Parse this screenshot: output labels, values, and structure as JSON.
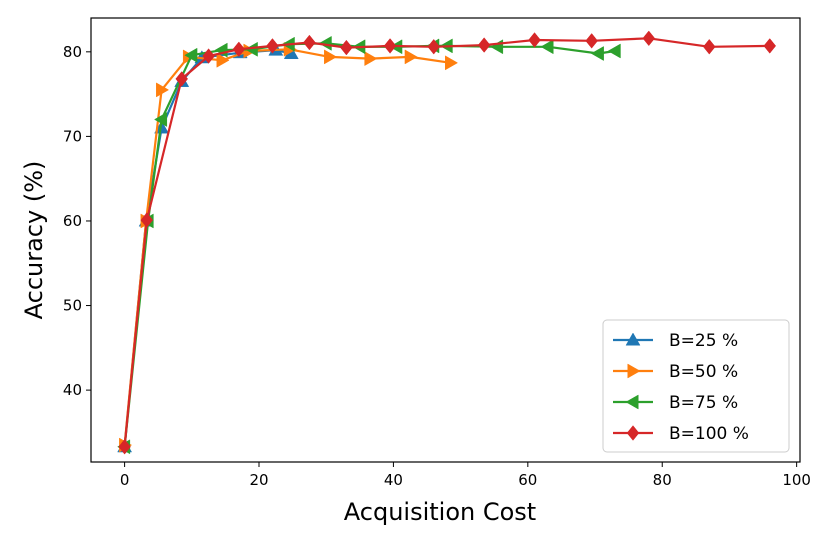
{
  "chart_data": {
    "type": "line",
    "title": "",
    "xlabel": "Acquisition Cost",
    "ylabel": "Accuracy (%)",
    "xlim": [
      -5,
      100.5
    ],
    "ylim": [
      31.5,
      84
    ],
    "x_ticks": [
      0,
      20,
      40,
      60,
      80,
      100
    ],
    "y_ticks": [
      40,
      50,
      60,
      70,
      80
    ],
    "grid": false,
    "legend_placement": "lower-right",
    "series": [
      {
        "name": "B=25 %",
        "color": "#1f77b4",
        "marker": "triangle-up",
        "points": [
          [
            0,
            33.3
          ],
          [
            3.2,
            60.0
          ],
          [
            5.5,
            71.0
          ],
          [
            8.5,
            76.5
          ],
          [
            11.5,
            79.3
          ],
          [
            17.2,
            79.9
          ],
          [
            22.5,
            80.2
          ],
          [
            24.8,
            79.8
          ]
        ]
      },
      {
        "name": "B=50 %",
        "color": "#ff7f0e",
        "marker": "triangle-right",
        "points": [
          [
            0,
            33.5
          ],
          [
            3.2,
            60.0
          ],
          [
            5.5,
            75.5
          ],
          [
            9.5,
            79.4
          ],
          [
            14.5,
            79.0
          ],
          [
            18.5,
            80.1
          ],
          [
            24.5,
            80.3
          ],
          [
            30.5,
            79.4
          ],
          [
            36.5,
            79.2
          ],
          [
            42.5,
            79.4
          ],
          [
            48.5,
            78.7
          ]
        ]
      },
      {
        "name": "B=75 %",
        "color": "#2ca02c",
        "marker": "triangle-left",
        "points": [
          [
            0,
            33.3
          ],
          [
            3.5,
            60.0
          ],
          [
            5.5,
            72.0
          ],
          [
            10.0,
            79.6
          ],
          [
            14.5,
            80.2
          ],
          [
            19.0,
            80.3
          ],
          [
            24.5,
            80.9
          ],
          [
            30.0,
            81.0
          ],
          [
            35.0,
            80.6
          ],
          [
            40.5,
            80.6
          ],
          [
            46.0,
            80.7
          ],
          [
            48.0,
            80.7
          ],
          [
            55.5,
            80.6
          ],
          [
            63.0,
            80.6
          ],
          [
            70.5,
            79.8
          ],
          [
            73.0,
            80.1
          ]
        ]
      },
      {
        "name": "B=100 %",
        "color": "#d62728",
        "marker": "diamond",
        "points": [
          [
            0,
            33.3
          ],
          [
            3.3,
            60.1
          ],
          [
            8.5,
            76.8
          ],
          [
            12.5,
            79.5
          ],
          [
            17.0,
            80.3
          ],
          [
            22.0,
            80.7
          ],
          [
            27.5,
            81.1
          ],
          [
            33.0,
            80.5
          ],
          [
            39.5,
            80.7
          ],
          [
            46.0,
            80.6
          ],
          [
            53.5,
            80.8
          ],
          [
            61.0,
            81.4
          ],
          [
            69.5,
            81.3
          ],
          [
            78.0,
            81.6
          ],
          [
            87.0,
            80.6
          ],
          [
            96.0,
            80.7
          ]
        ]
      }
    ]
  }
}
